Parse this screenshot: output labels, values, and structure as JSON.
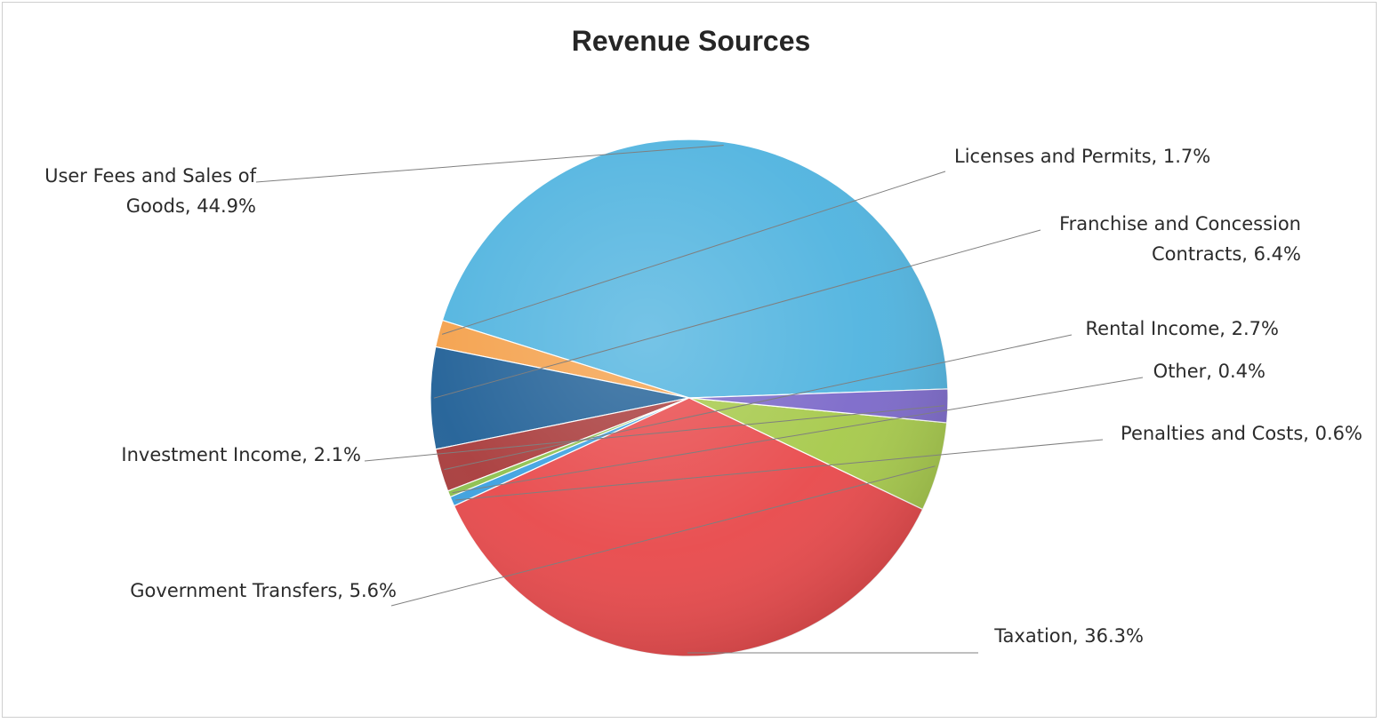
{
  "chart_data": {
    "type": "pie",
    "title": "Revenue Sources",
    "slices": [
      {
        "name": "User Fees and Sales of Goods",
        "value": 44.9,
        "label_lines": [
          "User Fees and Sales of",
          "Goods, 44.9%"
        ],
        "color": "#4fb3df"
      },
      {
        "name": "Licenses and Permits",
        "value": 1.7,
        "label_lines": [
          "Licenses and Permits, 1.7%"
        ],
        "color": "#f4a04a"
      },
      {
        "name": "Franchise and Concession Contracts",
        "value": 6.4,
        "label_lines": [
          "Franchise and Concession",
          "Contracts, 6.4%"
        ],
        "color": "#1f5f96"
      },
      {
        "name": "Rental Income",
        "value": 2.7,
        "label_lines": [
          "Rental Income, 2.7%"
        ],
        "color": "#a83a3a"
      },
      {
        "name": "Other",
        "value": 0.4,
        "label_lines": [
          "Other, 0.4%"
        ],
        "color": "#8cc04d"
      },
      {
        "name": "Penalties and Costs",
        "value": 0.6,
        "label_lines": [
          "Penalties and Costs, 0.6%"
        ],
        "color": "#3aa0e0"
      },
      {
        "name": "Taxation",
        "value": 36.3,
        "label_lines": [
          "Taxation, 36.3%"
        ],
        "color": "#e8484a"
      },
      {
        "name": "Government Transfers",
        "value": 5.6,
        "label_lines": [
          "Government Transfers, 5.6%"
        ],
        "color": "#a6c94a"
      },
      {
        "name": "Investment Income",
        "value": 2.1,
        "label_lines": [
          "Investment Income, 2.1%"
        ],
        "color": "#7b68c9"
      }
    ],
    "start_angle_deg": 2,
    "direction": "counterclockwise",
    "legend": "none",
    "data_labels": "outside with leader lines"
  }
}
